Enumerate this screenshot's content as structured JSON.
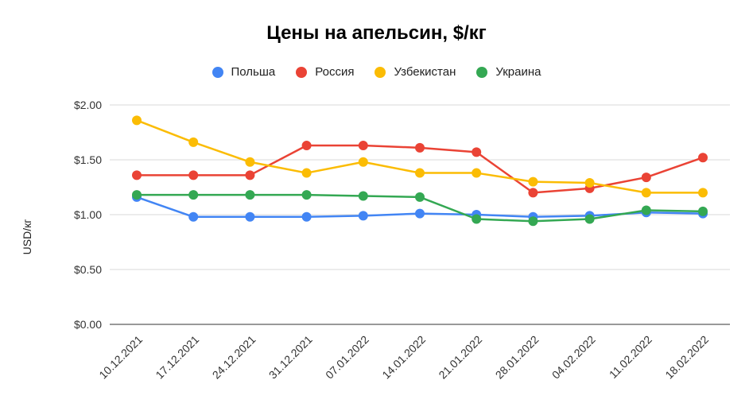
{
  "chart_data": {
    "type": "line",
    "title": "Цены на апельсин, $/кг",
    "ylabel": "USD/кг",
    "xlabel": "",
    "x": [
      "10.12.2021",
      "17.12.2021",
      "24.12.2021",
      "31.12.2021",
      "07.01.2022",
      "14.01.2022",
      "21.01.2022",
      "28.01.2022",
      "04.02.2022",
      "11.02.2022",
      "18.02.2022"
    ],
    "ylim": [
      0,
      2
    ],
    "yticks": [
      0,
      0.5,
      1,
      1.5,
      2
    ],
    "ytick_labels": [
      "$0.00",
      "$0.50",
      "$1.00",
      "$1.50",
      "$2.00"
    ],
    "grid": true,
    "legend_position": "top",
    "series": [
      {
        "name": "Польша",
        "color": "#4285F4",
        "values": [
          1.16,
          0.98,
          0.98,
          0.98,
          0.99,
          1.01,
          1.0,
          0.98,
          0.99,
          1.02,
          1.01
        ]
      },
      {
        "name": "Россия",
        "color": "#EA4335",
        "values": [
          1.36,
          1.36,
          1.36,
          1.63,
          1.63,
          1.61,
          1.57,
          1.2,
          1.24,
          1.34,
          1.52
        ]
      },
      {
        "name": "Узбекистан",
        "color": "#FBBC04",
        "values": [
          1.86,
          1.66,
          1.48,
          1.38,
          1.48,
          1.38,
          1.38,
          1.3,
          1.29,
          1.2,
          1.2
        ]
      },
      {
        "name": "Украина",
        "color": "#34A853",
        "values": [
          1.18,
          1.18,
          1.18,
          1.18,
          1.17,
          1.16,
          0.96,
          0.94,
          0.96,
          1.04,
          1.03
        ]
      }
    ]
  }
}
